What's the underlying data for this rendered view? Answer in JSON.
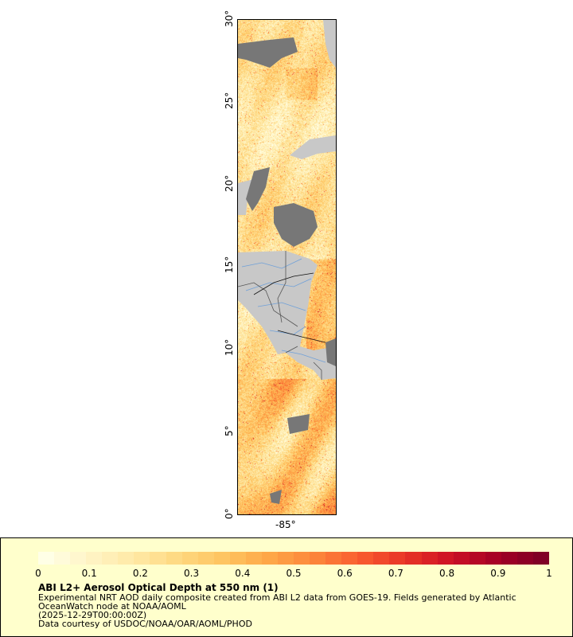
{
  "map": {
    "y_axis_labels": [
      "0°",
      "5°",
      "10°",
      "15°",
      "20°",
      "25°",
      "30°"
    ],
    "y_axis_values": [
      0,
      5,
      10,
      15,
      20,
      25,
      30
    ],
    "x_axis_labels": [
      "-85°"
    ],
    "x_axis_values": [
      -85
    ],
    "lat_range": [
      0,
      30
    ],
    "lon_range": [
      -88,
      -82.06
    ],
    "colors": {
      "land": "#c8c8c8",
      "clouds": "#777777",
      "borders": "#444444",
      "rivers": "#6fa0d8"
    }
  },
  "legend": {
    "colorbar_ticks": [
      "0",
      "0.1",
      "0.2",
      "0.3",
      "0.4",
      "0.5",
      "0.6",
      "0.7",
      "0.8",
      "0.9",
      "1"
    ],
    "colorbar_range": [
      0,
      1
    ],
    "colorbar_colors": [
      "#ffffe6",
      "#fff4c4",
      "#ffe8a4",
      "#fed77e",
      "#fec35f",
      "#fea647",
      "#fc843a",
      "#f95b2f",
      "#e83326",
      "#cc1126",
      "#a50026",
      "#800026"
    ],
    "title": "ABI L2+ Aerosol Optical Depth at 550 nm (1)",
    "line1": "Experimental NRT AOD daily composite created from ABI L2 data from GOES-19. Fields generated by Atlantic",
    "line2": "OceanWatch node at NOAA/AOML",
    "line3": "(2025-12-29T00:00:00Z)",
    "line4": "Data courtesy of USDOC/NOAA/OAR/AOML/PHOD"
  }
}
